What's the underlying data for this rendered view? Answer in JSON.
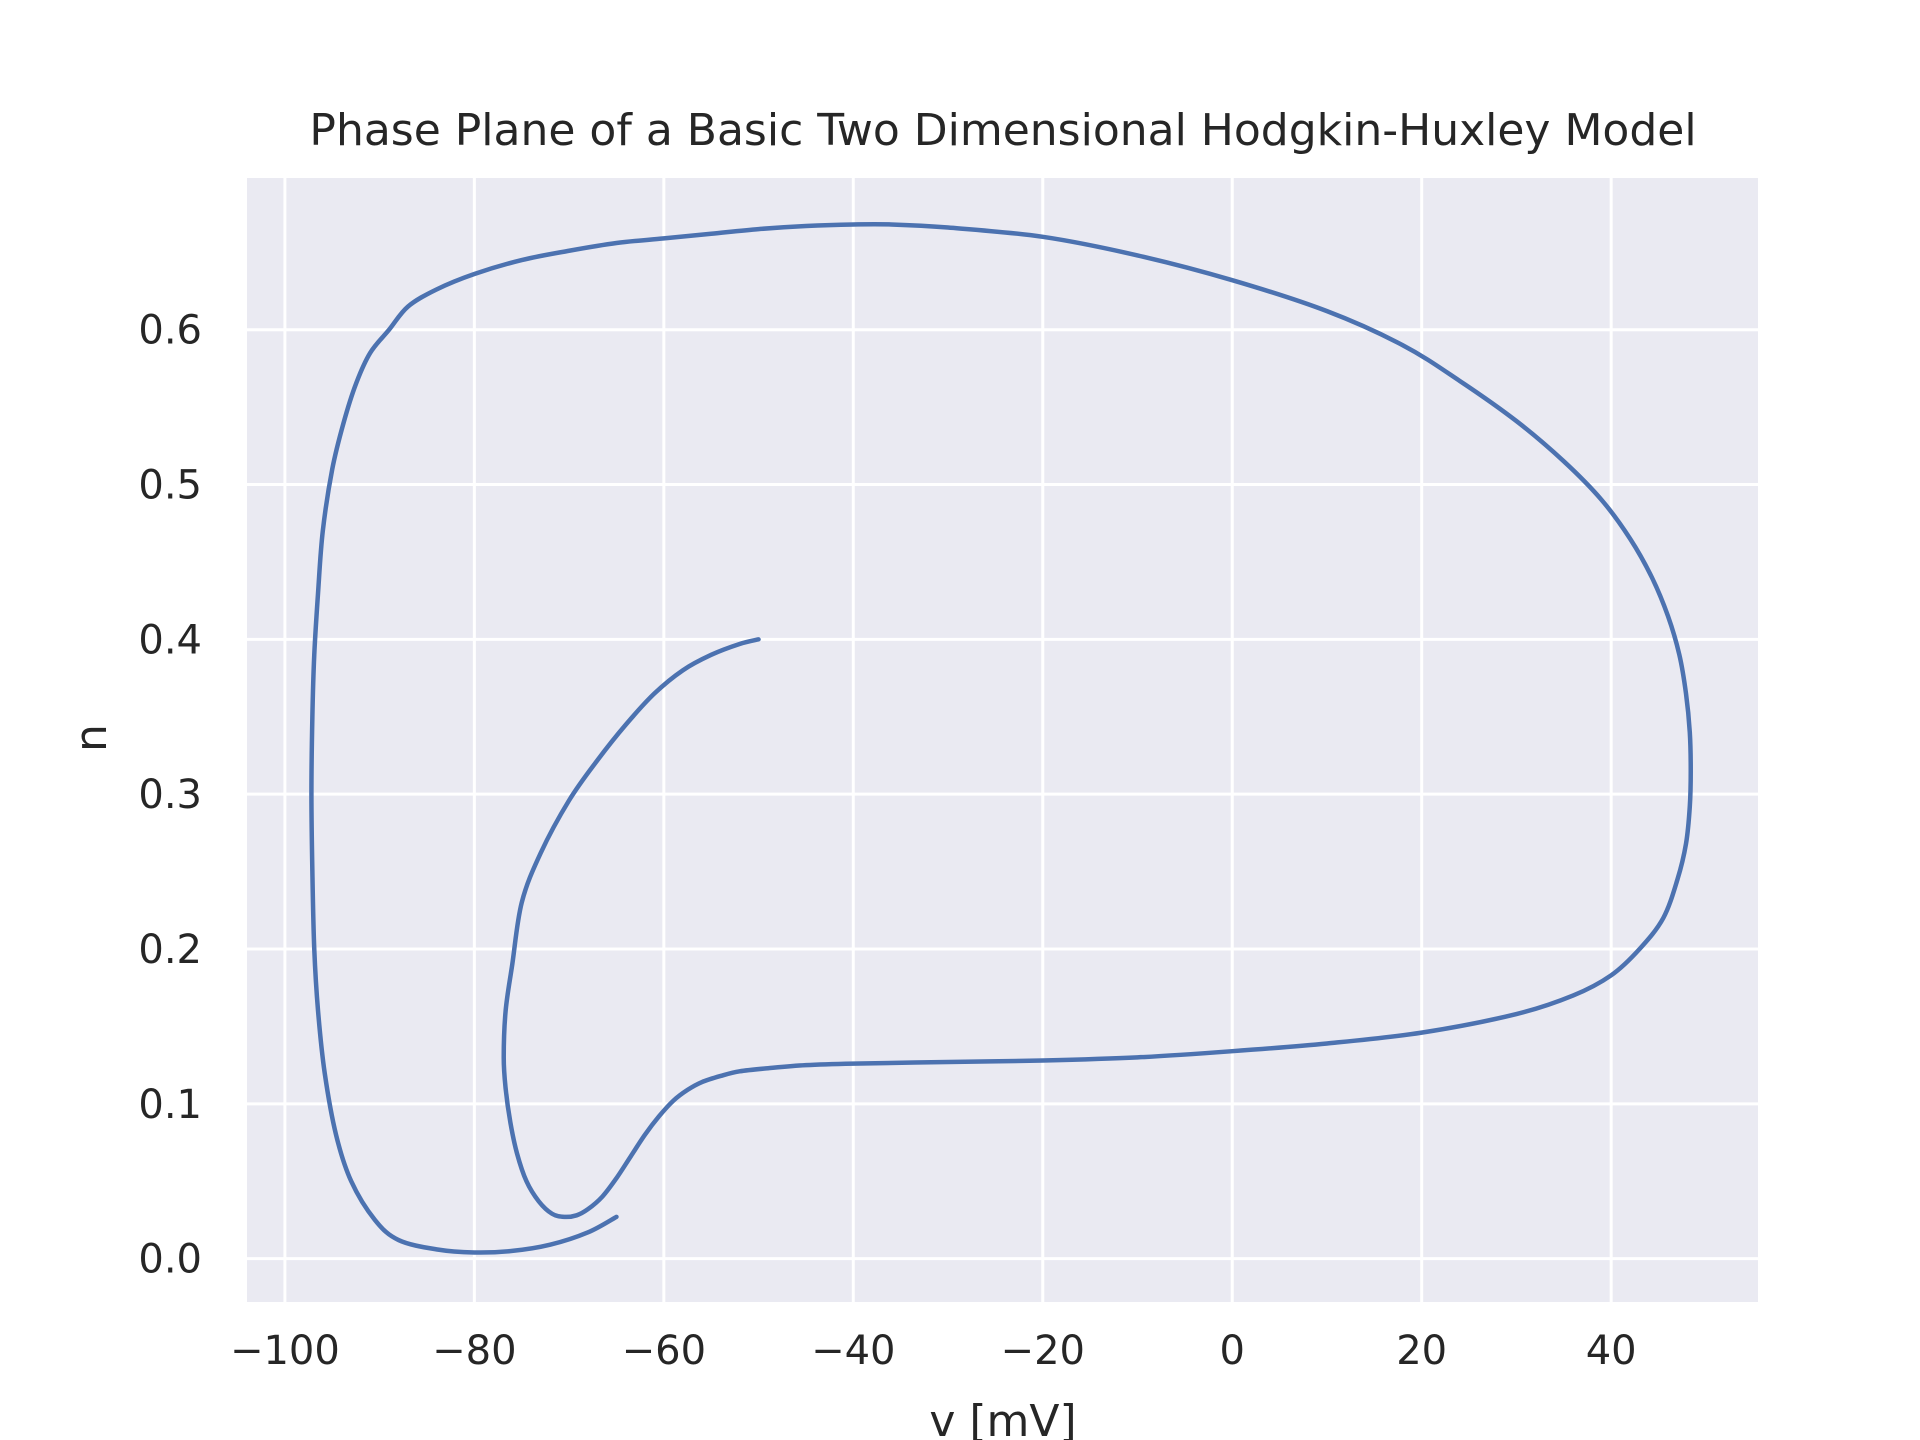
{
  "chart_data": {
    "type": "line",
    "title": "Phase Plane of a Basic Two Dimensional Hodgkin-Huxley Model",
    "xlabel": "v [mV]",
    "ylabel": "n",
    "xlim": [
      -104,
      55.5
    ],
    "ylim": [
      -0.028,
      0.698
    ],
    "x_ticks": [
      -100,
      -80,
      -60,
      -40,
      -20,
      0,
      20,
      40
    ],
    "x_tick_labels": [
      "−100",
      "−80",
      "−60",
      "−40",
      "−20",
      "0",
      "20",
      "40"
    ],
    "y_ticks": [
      0.0,
      0.1,
      0.2,
      0.3,
      0.4,
      0.5,
      0.6
    ],
    "y_tick_labels": [
      "0.0",
      "0.1",
      "0.2",
      "0.3",
      "0.4",
      "0.5",
      "0.6"
    ],
    "grid": true,
    "legend": "none",
    "colors": {
      "line": "#4c72b0",
      "plot_background": "#eaeaf2",
      "grid": "#ffffff",
      "text": "#262626"
    },
    "series": [
      {
        "x": [
          -50,
          -52,
          -55,
          -58,
          -61,
          -64,
          -67,
          -70,
          -73,
          -75,
          -76,
          -76.7,
          -76.9,
          -76.7,
          -76.2,
          -75.5,
          -74.5,
          -73.2,
          -71.8,
          -70.5,
          -69.2,
          -68,
          -66.5,
          -65,
          -63.5,
          -62,
          -60.5,
          -59,
          -57.5,
          -56,
          -54,
          -52,
          -49,
          -45,
          -40,
          -30,
          -20,
          -10,
          0,
          10,
          20,
          30,
          36,
          40,
          43,
          45.5,
          47,
          47.9,
          48.3,
          48.4,
          48.3,
          47.9,
          47.2,
          46,
          44.3,
          42,
          39,
          35,
          30,
          24,
          18,
          10,
          0,
          -10,
          -20,
          -30,
          -36,
          -40,
          -45,
          -50,
          -55,
          -60,
          -65,
          -70,
          -75,
          -80,
          -84,
          -87,
          -89,
          -91,
          -92.5,
          -93.8,
          -95,
          -96,
          -96.5,
          -96.9,
          -97.1,
          -97.2,
          -97.1,
          -96.9,
          -96.5,
          -95.8,
          -94.6,
          -93,
          -90.5,
          -88,
          -84,
          -80,
          -76,
          -72,
          -68,
          -65
        ],
        "y": [
          0.4,
          0.397,
          0.39,
          0.38,
          0.365,
          0.345,
          0.322,
          0.296,
          0.262,
          0.23,
          0.19,
          0.16,
          0.13,
          0.11,
          0.088,
          0.068,
          0.05,
          0.037,
          0.029,
          0.027,
          0.028,
          0.032,
          0.04,
          0.052,
          0.066,
          0.08,
          0.092,
          0.102,
          0.109,
          0.114,
          0.118,
          0.121,
          0.123,
          0.125,
          0.126,
          0.127,
          0.128,
          0.13,
          0.134,
          0.139,
          0.146,
          0.158,
          0.17,
          0.183,
          0.2,
          0.22,
          0.245,
          0.268,
          0.292,
          0.315,
          0.34,
          0.365,
          0.39,
          0.415,
          0.44,
          0.465,
          0.49,
          0.515,
          0.541,
          0.567,
          0.59,
          0.612,
          0.632,
          0.648,
          0.66,
          0.666,
          0.668,
          0.668,
          0.667,
          0.665,
          0.662,
          0.659,
          0.656,
          0.651,
          0.645,
          0.636,
          0.626,
          0.615,
          0.6,
          0.585,
          0.565,
          0.54,
          0.51,
          0.47,
          0.43,
          0.39,
          0.35,
          0.3,
          0.25,
          0.2,
          0.16,
          0.12,
          0.08,
          0.05,
          0.025,
          0.012,
          0.006,
          0.004,
          0.005,
          0.009,
          0.017,
          0.027
        ]
      }
    ]
  }
}
